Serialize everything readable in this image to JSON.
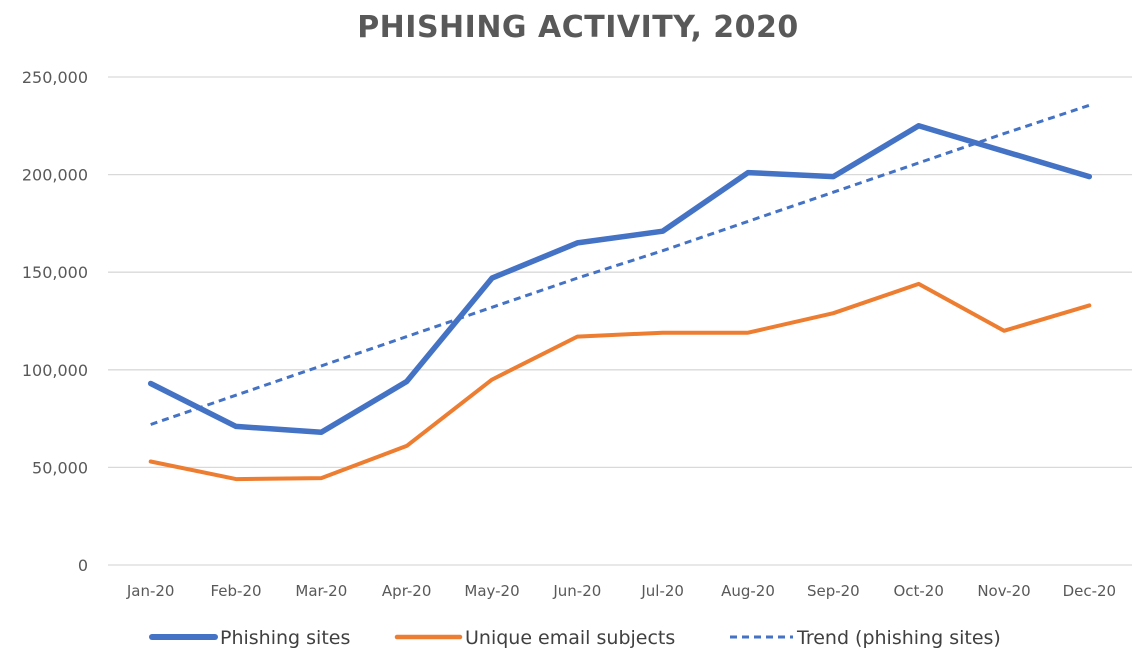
{
  "chart_data": {
    "type": "line",
    "title": "PHISHING ACTIVITY, 2020",
    "xlabel": "",
    "ylabel": "",
    "categories": [
      "Jan-20",
      "Feb-20",
      "Mar-20",
      "Apr-20",
      "May-20",
      "Jun-20",
      "Jul-20",
      "Aug-20",
      "Sep-20",
      "Oct-20",
      "Nov-20",
      "Dec-20"
    ],
    "ylim": [
      0,
      250000
    ],
    "yticks": [
      0,
      50000,
      100000,
      150000,
      200000,
      250000
    ],
    "ytick_labels": [
      "0",
      "50,000",
      "100,000",
      "150,000",
      "200,000",
      "250,000"
    ],
    "grid": true,
    "legend_position": "bottom",
    "series": [
      {
        "name": "Phishing sites",
        "color": "#4472c4",
        "style": "solid",
        "values": [
          93000,
          71000,
          68000,
          94000,
          147000,
          165000,
          171000,
          201000,
          199000,
          225000,
          212000,
          199000
        ]
      },
      {
        "name": "Unique email subjects",
        "color": "#ed7d31",
        "style": "solid",
        "values": [
          53000,
          44000,
          44500,
          61000,
          95000,
          117000,
          119000,
          119000,
          129000,
          144000,
          120000,
          133000
        ]
      },
      {
        "name": "Trend (phishing sites)",
        "color": "#4472c4",
        "style": "dashed",
        "values": [
          72000,
          87000,
          102000,
          117000,
          132000,
          147000,
          161000,
          176000,
          191000,
          206000,
          221000,
          235500
        ]
      }
    ]
  }
}
